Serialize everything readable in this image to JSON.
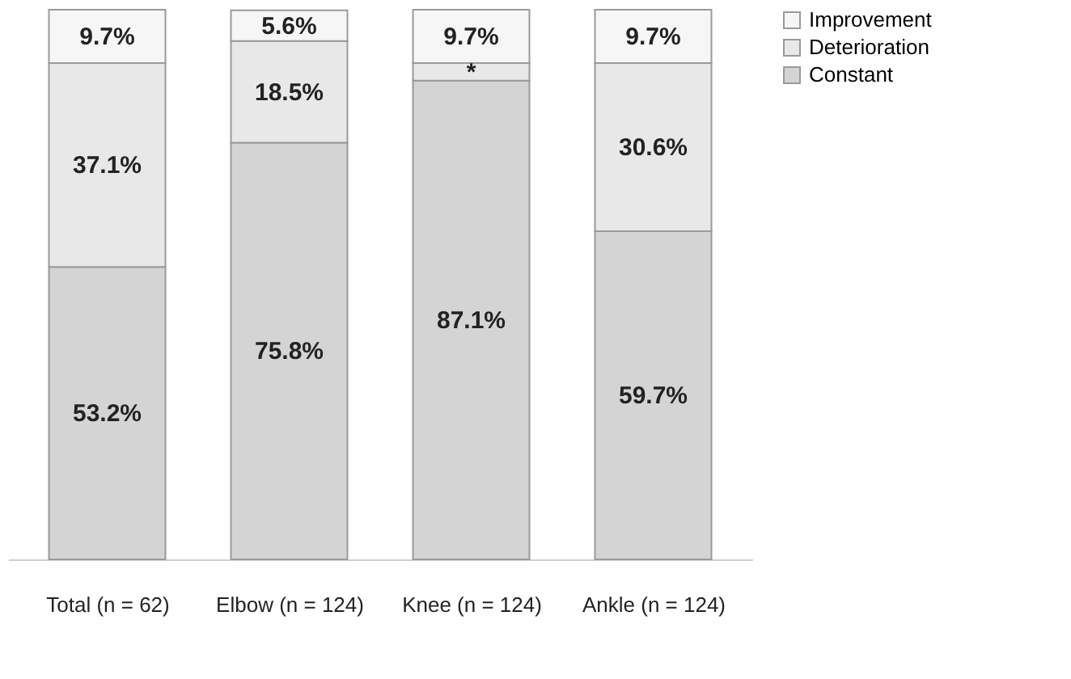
{
  "chart_data": {
    "type": "bar",
    "stacked": true,
    "categories": [
      "Total (n = 62)",
      "Elbow (n = 124)",
      "Knee (n = 124)",
      "Ankle (n = 124)"
    ],
    "series": [
      {
        "name": "Constant",
        "color": "#d4d4d4",
        "values": [
          53.2,
          75.8,
          87.1,
          59.7
        ],
        "value_labels": [
          "53.2%",
          "75.8%",
          "87.1%",
          "59.7%"
        ]
      },
      {
        "name": "Deterioration",
        "color": "#e8e8e8",
        "values": [
          37.1,
          18.5,
          3.2,
          30.6
        ],
        "value_labels": [
          "37.1%",
          "18.5%",
          "*",
          "30.6%"
        ]
      },
      {
        "name": "Improvement",
        "color": "#f6f6f6",
        "values": [
          9.7,
          5.6,
          9.7,
          9.7
        ],
        "value_labels": [
          "9.7%",
          "5.6%",
          "9.7%",
          "9.7%"
        ]
      }
    ],
    "ylim": [
      0,
      100
    ],
    "tick_labels": "x",
    "grid": false,
    "legend": "right"
  }
}
